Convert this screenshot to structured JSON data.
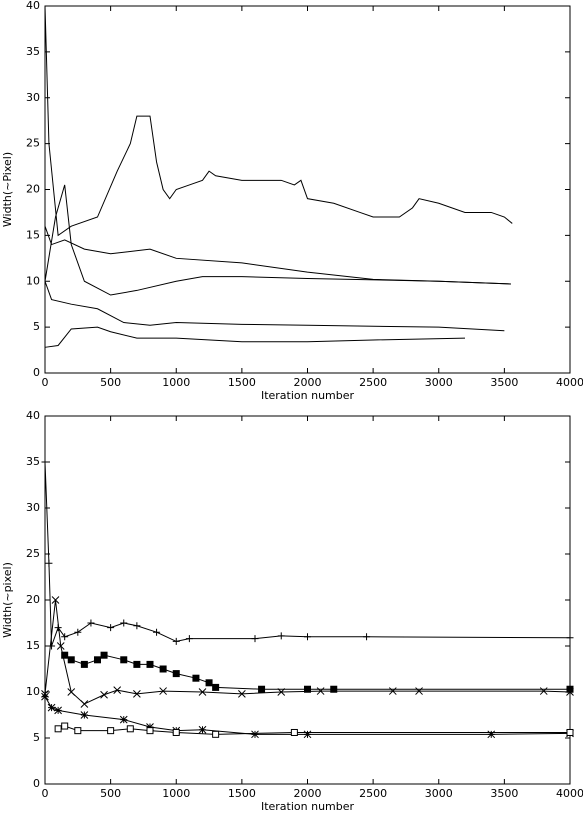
{
  "chart_data": [
    {
      "type": "line",
      "xlabel": "Iteration number",
      "ylabel": "Width(~Pixel)",
      "xlim": [
        0,
        4000
      ],
      "ylim": [
        0,
        40
      ],
      "xticks": [
        0,
        500,
        1000,
        1500,
        2000,
        2500,
        3000,
        3500,
        4000
      ],
      "yticks": [
        0,
        5,
        10,
        15,
        20,
        25,
        30,
        35,
        40
      ],
      "series": [
        {
          "color": "#000000",
          "x": [
            0,
            30,
            100,
            200,
            400,
            550,
            650,
            700,
            800,
            850,
            900,
            950,
            1000,
            1100,
            1200,
            1250,
            1300,
            1500,
            1800,
            1900,
            1950,
            2000,
            2200,
            2400,
            2500,
            2700,
            2800,
            2850,
            3000,
            3200,
            3400,
            3500,
            3560
          ],
          "values": [
            40,
            25,
            15,
            16,
            17,
            22,
            25,
            28,
            28,
            23,
            20,
            19,
            20,
            20.5,
            21,
            22,
            21.5,
            21,
            21,
            20.5,
            21,
            19,
            18.5,
            17.5,
            17,
            17,
            18,
            19,
            18.5,
            17.5,
            17.5,
            17,
            16.3
          ]
        },
        {
          "color": "#000000",
          "x": [
            0,
            50,
            150,
            300,
            500,
            800,
            1000,
            1500,
            2000,
            2500,
            3000,
            3550
          ],
          "values": [
            16,
            14,
            14.5,
            13.5,
            13,
            13.5,
            12.5,
            12,
            11,
            10.2,
            10,
            9.7
          ]
        },
        {
          "color": "#000000",
          "x": [
            0,
            80,
            150,
            200,
            300,
            500,
            700,
            1000,
            1200,
            1500,
            2000,
            3000,
            3550
          ],
          "values": [
            10,
            17,
            20.5,
            14,
            10,
            8.5,
            9,
            10,
            10.5,
            10.5,
            10.3,
            10,
            9.7
          ]
        },
        {
          "color": "#000000",
          "x": [
            0,
            50,
            200,
            400,
            600,
            800,
            1000,
            1500,
            2000,
            3000,
            3500
          ],
          "values": [
            10,
            8,
            7.5,
            7,
            5.5,
            5.2,
            5.5,
            5.3,
            5.2,
            5,
            4.6
          ]
        },
        {
          "color": "#000000",
          "x": [
            0,
            100,
            200,
            400,
            500,
            700,
            1000,
            1500,
            2000,
            2500,
            3200
          ],
          "values": [
            2.8,
            3,
            4.8,
            5,
            4.5,
            3.8,
            3.8,
            3.4,
            3.4,
            3.6,
            3.8
          ]
        }
      ]
    },
    {
      "type": "line",
      "xlabel": "Iteration number",
      "ylabel": "Width(~pixel)",
      "xlim": [
        0,
        4000
      ],
      "ylim": [
        0,
        40
      ],
      "xticks": [
        0,
        500,
        1000,
        1500,
        2000,
        2500,
        3000,
        3500,
        4000
      ],
      "yticks": [
        0,
        5,
        10,
        15,
        20,
        25,
        30,
        35,
        40
      ],
      "series": [
        {
          "color": "#000000",
          "marker": "plus",
          "x": [
            0,
            30,
            50,
            100,
            150,
            250,
            350,
            500,
            600,
            700,
            850,
            1000,
            1100,
            1600,
            1800,
            2000,
            2450,
            4000
          ],
          "values": [
            35,
            24,
            15,
            17,
            16,
            16.5,
            17.5,
            17,
            17.5,
            17.2,
            16.5,
            15.5,
            15.8,
            15.8,
            16.1,
            16,
            16,
            15.9
          ]
        },
        {
          "color": "#000000",
          "marker": "filled-square",
          "x": [
            150,
            200,
            300,
            400,
            450,
            600,
            700,
            800,
            900,
            1000,
            1150,
            1250,
            1300,
            1650,
            2000,
            2200,
            4000
          ],
          "values": [
            14,
            13.5,
            13,
            13.5,
            14,
            13.5,
            13,
            13,
            12.5,
            12,
            11.5,
            11,
            10.5,
            10.3,
            10.3,
            10.3,
            10.3
          ]
        },
        {
          "color": "#000000",
          "marker": "cross",
          "x": [
            0,
            80,
            120,
            200,
            300,
            450,
            550,
            700,
            900,
            1200,
            1500,
            1800,
            2100,
            2650,
            2850,
            3800,
            4000
          ],
          "values": [
            9.8,
            20,
            15,
            10,
            8.7,
            9.7,
            10.2,
            9.8,
            10.1,
            10,
            9.8,
            10,
            10.1,
            10.1,
            10.1,
            10.1,
            10
          ]
        },
        {
          "color": "#000000",
          "marker": "asterisk",
          "x": [
            0,
            50,
            100,
            300,
            600,
            800,
            1000,
            1200,
            1600,
            2000,
            3400,
            4000
          ],
          "values": [
            9.5,
            8.3,
            8,
            7.5,
            7,
            6.2,
            5.8,
            5.9,
            5.4,
            5.4,
            5.4,
            5.5
          ]
        },
        {
          "color": "#000000",
          "marker": "open-square",
          "x": [
            100,
            150,
            250,
            500,
            650,
            800,
            1000,
            1300,
            1900,
            4000
          ],
          "values": [
            6,
            6.3,
            5.8,
            5.8,
            6,
            5.8,
            5.6,
            5.4,
            5.6,
            5.6
          ]
        }
      ]
    }
  ]
}
